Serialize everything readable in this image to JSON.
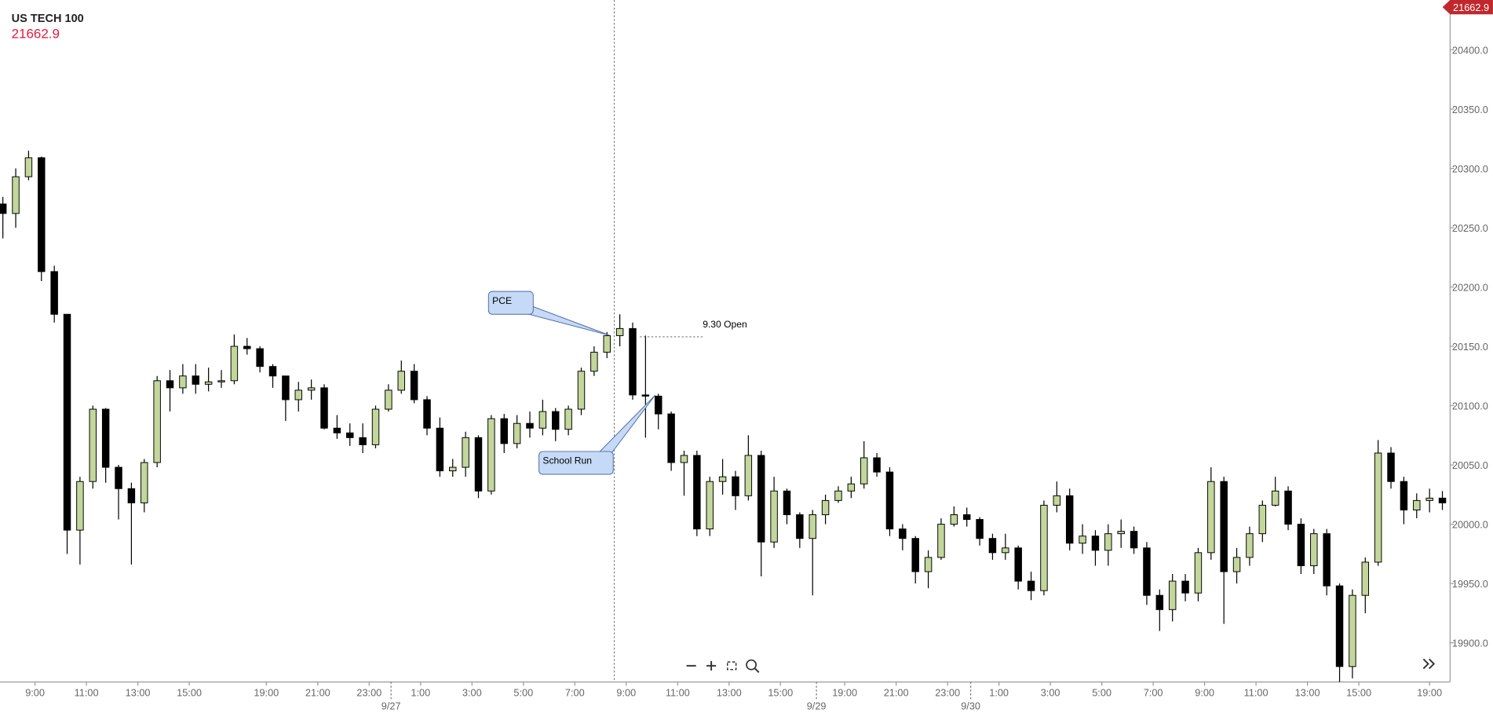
{
  "chart_data": {
    "type": "candlestick",
    "title": "US TECH 100",
    "last_price": 21662.9,
    "up_color": "#c3d69b",
    "down_color": "#000000",
    "open": [
      20270,
      20262,
      20293,
      20309,
      20213,
      20177,
      19995,
      20036,
      20097,
      20048,
      20030,
      20018,
      20052,
      20121,
      20115,
      20125,
      20118,
      20120,
      20121,
      20150,
      20148,
      20133,
      20125,
      20105,
      20113,
      20115,
      20081,
      20077,
      20073,
      20067,
      20097,
      20113,
      20129,
      20105,
      20081,
      20045,
      20048,
      20073,
      20028,
      20089,
      20068,
      20085,
      20081,
      20095,
      20080,
      20097,
      20129,
      20145,
      20159,
      20165,
      20109,
      20108,
      20093,
      20052,
      20058,
      19996,
      20036,
      20040,
      20024,
      20058,
      19985,
      20028,
      20008,
      19988,
      20008,
      20020,
      20028,
      20034,
      20056,
      20044,
      19996,
      19988,
      19960,
      19972,
      20000,
      20008,
      20004,
      19988,
      19976,
      19980,
      19952,
      19944,
      20016,
      20024,
      19984,
      19990,
      19978,
      19992,
      19994,
      19980,
      19940,
      19928,
      19952,
      19942,
      19976,
      20036,
      19960,
      19972,
      19992,
      20016,
      20028,
      20000,
      19965,
      19992,
      19948,
      19880,
      19940,
      19968,
      20060,
      20036,
      20012,
      20020,
      20022
    ],
    "high": [
      20276,
      20300,
      20315,
      20310,
      20218,
      20177,
      20040,
      20100,
      20098,
      20050,
      20035,
      20055,
      20125,
      20130,
      20135,
      20135,
      20132,
      20130,
      20160,
      20157,
      20150,
      20135,
      20125,
      20120,
      20122,
      20118,
      20092,
      20085,
      20085,
      20100,
      20118,
      20138,
      20135,
      20108,
      20090,
      20055,
      20078,
      20075,
      20092,
      20093,
      20092,
      20095,
      20105,
      20098,
      20100,
      20132,
      20150,
      20162,
      20177,
      20170,
      20159,
      20110,
      20095,
      20062,
      20062,
      20040,
      20055,
      20045,
      20075,
      20062,
      20040,
      20030,
      20010,
      20012,
      20025,
      20032,
      20040,
      20070,
      20060,
      20048,
      20000,
      19990,
      19978,
      20005,
      20015,
      20014,
      20006,
      19992,
      19992,
      19982,
      19960,
      20020,
      20036,
      20030,
      20000,
      19995,
      20000,
      20004,
      19998,
      19985,
      19945,
      19958,
      19958,
      19980,
      20048,
      20040,
      19980,
      19998,
      20020,
      20040,
      20032,
      20005,
      19996,
      19996,
      19950,
      19945,
      19972,
      20071,
      20065,
      20040,
      20026,
      20030,
      20028
    ],
    "low": [
      20241,
      20250,
      20290,
      20205,
      20170,
      19975,
      19966,
      20030,
      20035,
      20004,
      19966,
      20010,
      20048,
      20095,
      20110,
      20110,
      20112,
      20115,
      20118,
      20143,
      20128,
      20115,
      20087,
      20095,
      20105,
      20080,
      20072,
      20066,
      20060,
      20064,
      20095,
      20110,
      20102,
      20075,
      20040,
      20040,
      20040,
      20022,
      20025,
      20060,
      20064,
      20073,
      20075,
      20070,
      20075,
      20092,
      20125,
      20140,
      20150,
      20105,
      20073,
      20080,
      20045,
      20024,
      19990,
      19990,
      20025,
      20012,
      20020,
      19956,
      19980,
      20000,
      19980,
      19940,
      20000,
      20018,
      20022,
      20030,
      20040,
      19990,
      19978,
      19950,
      19946,
      19970,
      19998,
      19998,
      19982,
      19970,
      19970,
      19945,
      19936,
      19940,
      20010,
      19978,
      19975,
      19965,
      19965,
      19980,
      19975,
      19932,
      19910,
      19918,
      19935,
      19935,
      19970,
      19916,
      19950,
      19965,
      19985,
      20015,
      19995,
      19958,
      19958,
      19940,
      19867,
      19870,
      19925,
      19965,
      20030,
      20000,
      20005,
      20010,
      20012
    ],
    "close": [
      20262,
      20293,
      20309,
      20213,
      20177,
      19995,
      20036,
      20097,
      20048,
      20030,
      20018,
      20052,
      20121,
      20115,
      20125,
      20118,
      20120,
      20121,
      20150,
      20148,
      20133,
      20125,
      20105,
      20113,
      20115,
      20081,
      20077,
      20073,
      20067,
      20097,
      20113,
      20129,
      20105,
      20081,
      20045,
      20048,
      20073,
      20028,
      20089,
      20068,
      20085,
      20081,
      20095,
      20080,
      20097,
      20129,
      20145,
      20159,
      20165,
      20109,
      20108,
      20093,
      20052,
      20058,
      19996,
      20036,
      20040,
      20024,
      20058,
      19985,
      20028,
      20008,
      19988,
      20008,
      20020,
      20028,
      20034,
      20056,
      20044,
      19996,
      19988,
      19960,
      19972,
      20000,
      20008,
      20004,
      19988,
      19976,
      19980,
      19952,
      19944,
      20016,
      20024,
      19984,
      19990,
      19978,
      19992,
      19994,
      19980,
      19940,
      19928,
      19952,
      19942,
      19976,
      20036,
      19960,
      19972,
      19992,
      20016,
      20028,
      20000,
      19965,
      19992,
      19948,
      19880,
      19940,
      19968,
      20060,
      20036,
      20012,
      20020,
      20022,
      20018
    ],
    "xlim": [
      -0.22,
      112.6
    ],
    "ylim": [
      19867,
      20442
    ],
    "xticks": [
      {
        "value": 2.5,
        "label": "9:00"
      },
      {
        "value": 6.5,
        "label": "11:00"
      },
      {
        "value": 10.5,
        "label": "13:00"
      },
      {
        "value": 14.5,
        "label": "15:00"
      },
      {
        "value": 20.5,
        "label": "19:00"
      },
      {
        "value": 24.5,
        "label": "21:00"
      },
      {
        "value": 28.5,
        "label": "23:00"
      },
      {
        "value": 32.5,
        "label": "1:00"
      },
      {
        "value": 36.5,
        "label": "3:00"
      },
      {
        "value": 40.5,
        "label": "5:00"
      },
      {
        "value": 44.5,
        "label": "7:00"
      },
      {
        "value": 48.5,
        "label": "9:00"
      },
      {
        "value": 52.5,
        "label": "11:00"
      },
      {
        "value": 56.5,
        "label": "13:00"
      },
      {
        "value": 60.5,
        "label": "15:00"
      },
      {
        "value": 65.5,
        "label": "19:00"
      },
      {
        "value": 69.5,
        "label": "21:00"
      },
      {
        "value": 73.5,
        "label": "23:00"
      },
      {
        "value": 77.5,
        "label": "1:00"
      },
      {
        "value": 81.5,
        "label": "3:00"
      },
      {
        "value": 85.5,
        "label": "5:00"
      },
      {
        "value": 89.5,
        "label": "7:00"
      },
      {
        "value": 93.5,
        "label": "9:00"
      },
      {
        "value": 97.5,
        "label": "11:00"
      },
      {
        "value": 101.5,
        "label": "13:00"
      },
      {
        "value": 105.5,
        "label": "15:00"
      },
      {
        "value": 111,
        "label": "19:00"
      }
    ],
    "date_ticks": [
      {
        "value": 30.2,
        "label": "9/27"
      },
      {
        "value": 63.3,
        "label": "9/29"
      },
      {
        "value": 75.3,
        "label": "9/30"
      }
    ],
    "yticks": [
      {
        "value": 19900,
        "label": "19900.0"
      },
      {
        "value": 19950,
        "label": "19950.0"
      },
      {
        "value": 20000,
        "label": "20000.0"
      },
      {
        "value": 20050,
        "label": "20050.0"
      },
      {
        "value": 20100,
        "label": "20100.0"
      },
      {
        "value": 20150,
        "label": "20150.0"
      },
      {
        "value": 20200,
        "label": "20200.0"
      },
      {
        "value": 20250,
        "label": "20250.0"
      },
      {
        "value": 20300,
        "label": "20300.0"
      },
      {
        "value": 20350,
        "label": "20350.0"
      },
      {
        "value": 20400,
        "label": "20400.0"
      }
    ],
    "annotations": [
      {
        "text": "PCE"
      },
      {
        "text": "School Run"
      },
      {
        "text": "9.30 Open",
        "price": 20158
      }
    ]
  }
}
